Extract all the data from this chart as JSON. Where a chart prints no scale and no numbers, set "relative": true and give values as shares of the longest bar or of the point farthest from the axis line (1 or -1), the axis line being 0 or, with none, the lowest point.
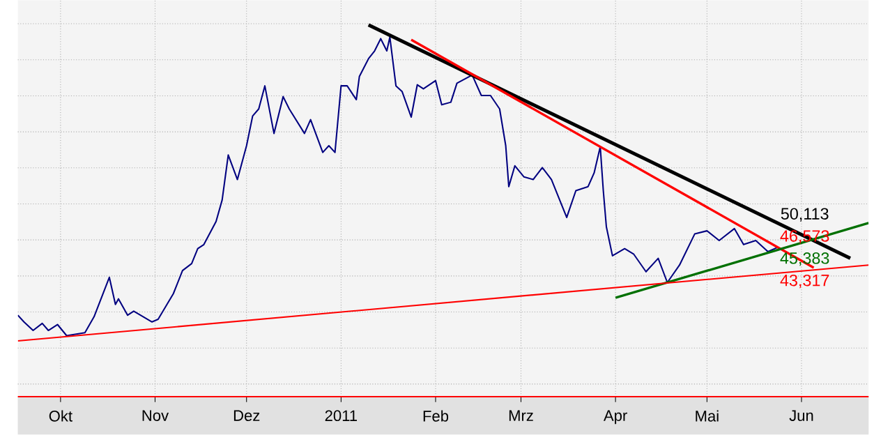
{
  "chart_data": {
    "type": "line",
    "relative": true,
    "grid": true,
    "line_style": "solid",
    "xlim": [
      "2010-09-17",
      "2011-06-23"
    ],
    "xticks": [
      {
        "value": "2010-10-01",
        "label": "Okt"
      },
      {
        "value": "2010-11-01",
        "label": "Nov"
      },
      {
        "value": "2010-12-01",
        "label": "Dez"
      },
      {
        "value": "2011-01-01",
        "label": "2011"
      },
      {
        "value": "2011-02-01",
        "label": "Feb"
      },
      {
        "value": "2011-03-01",
        "label": "Mrz"
      },
      {
        "value": "2011-04-01",
        "label": "Apr"
      },
      {
        "value": "2011-05-01",
        "label": "Mai"
      },
      {
        "value": "2011-06-01",
        "label": "Jun"
      }
    ],
    "series": [
      {
        "color": "#000080",
        "x": [
          "2010-09-17",
          "2010-09-19",
          "2010-09-22",
          "2010-09-25",
          "2010-09-27",
          "2010-09-30",
          "2010-10-03",
          "2010-10-09",
          "2010-10-12",
          "2010-10-17",
          "2010-10-19",
          "2010-10-20",
          "2010-10-23",
          "2010-10-25",
          "2010-10-31",
          "2010-11-02",
          "2010-11-07",
          "2010-11-10",
          "2010-11-13",
          "2010-11-15",
          "2010-11-17",
          "2010-11-21",
          "2010-11-23",
          "2010-11-25",
          "2010-11-28",
          "2010-12-01",
          "2010-12-03",
          "2010-12-05",
          "2010-12-07",
          "2010-12-10",
          "2010-12-13",
          "2010-12-15",
          "2010-12-20",
          "2010-12-22",
          "2010-12-26",
          "2010-12-28",
          "2010-12-30",
          "2011-01-01",
          "2011-01-03",
          "2011-01-06",
          "2011-01-07",
          "2011-01-10",
          "2011-01-12",
          "2011-01-14",
          "2011-01-16",
          "2011-01-17",
          "2011-01-19",
          "2011-01-21",
          "2011-01-24",
          "2011-01-26",
          "2011-01-28",
          "2011-02-01",
          "2011-02-03",
          "2011-02-06",
          "2011-02-08",
          "2011-02-13",
          "2011-02-16",
          "2011-02-19",
          "2011-02-22",
          "2011-02-24",
          "2011-02-25",
          "2011-02-27",
          "2011-03-02",
          "2011-03-05",
          "2011-03-08",
          "2011-03-11",
          "2011-03-16",
          "2011-03-19",
          "2011-03-23",
          "2011-03-25",
          "2011-03-27",
          "2011-03-28",
          "2011-03-29",
          "2011-03-31",
          "2011-04-04",
          "2011-04-07",
          "2011-04-11",
          "2011-04-15",
          "2011-04-18",
          "2011-04-22",
          "2011-04-27",
          "2011-05-01",
          "2011-05-05",
          "2011-05-10",
          "2011-05-13",
          "2011-05-17",
          "2011-05-21",
          "2011-05-24"
        ],
        "values": [
          0.219,
          0.201,
          0.178,
          0.197,
          0.178,
          0.194,
          0.164,
          0.172,
          0.215,
          0.321,
          0.248,
          0.263,
          0.219,
          0.23,
          0.201,
          0.208,
          0.277,
          0.339,
          0.358,
          0.398,
          0.409,
          0.471,
          0.529,
          0.65,
          0.584,
          0.675,
          0.755,
          0.774,
          0.836,
          0.708,
          0.807,
          0.774,
          0.708,
          0.745,
          0.657,
          0.675,
          0.657,
          0.836,
          0.836,
          0.799,
          0.861,
          0.909,
          0.93,
          0.963,
          0.93,
          0.967,
          0.836,
          0.821,
          0.752,
          0.839,
          0.828,
          0.85,
          0.785,
          0.792,
          0.843,
          0.865,
          0.81,
          0.81,
          0.774,
          0.675,
          0.565,
          0.621,
          0.591,
          0.584,
          0.616,
          0.584,
          0.482,
          0.554,
          0.565,
          0.602,
          0.672,
          0.554,
          0.457,
          0.379,
          0.398,
          0.383,
          0.336,
          0.372,
          0.307,
          0.354,
          0.438,
          0.446,
          0.42,
          0.452,
          0.409,
          0.42,
          0.39,
          0.401
        ]
      },
      {
        "color": "#000000",
        "x": [
          "2011-01-10",
          "2011-06-17"
        ],
        "values": [
          1.0,
          0.372
        ]
      },
      {
        "color": "#ff0000",
        "x": [
          "2011-01-24",
          "2011-06-05"
        ],
        "values": [
          0.96,
          0.347
        ]
      },
      {
        "color": "#007000",
        "x": [
          "2011-04-01",
          "2011-06-23"
        ],
        "values": [
          0.266,
          0.467
        ]
      },
      {
        "color": "#ff0000",
        "x": [
          "2010-09-17",
          "2011-06-23"
        ],
        "values": [
          0.15,
          0.354
        ]
      }
    ],
    "annotations": [
      "50,113",
      "46,573",
      "45,383",
      "43,317"
    ]
  }
}
